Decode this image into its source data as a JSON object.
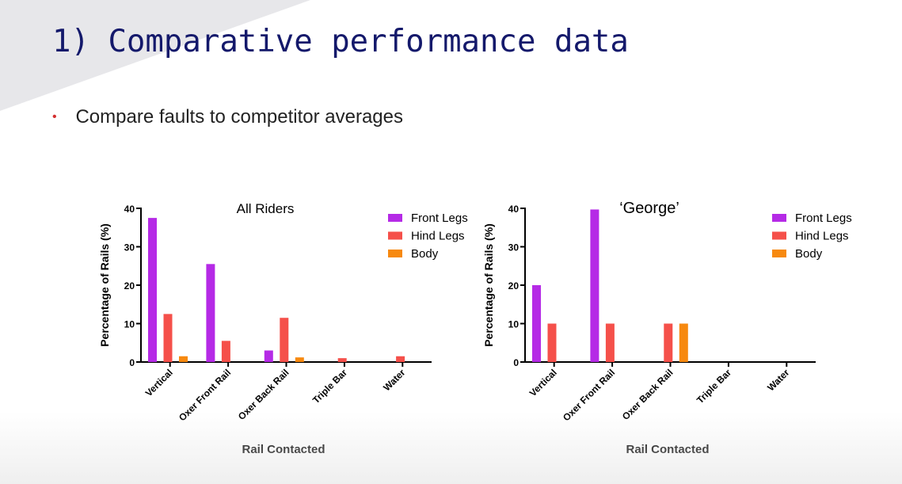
{
  "slide": {
    "title": "1) Comparative performance data",
    "bullet": "Compare faults to competitor averages"
  },
  "colors": {
    "front_legs": "#b52ae6",
    "hind_legs": "#f5504a",
    "body": "#f7890f",
    "title": "#14196b",
    "bullet_dot": "#d32f2f"
  },
  "chart_data": [
    {
      "type": "bar",
      "title": "All Riders",
      "xlabel": "Rail Contacted",
      "ylabel": "Percentage of Rails (%)",
      "ylim": [
        0,
        40
      ],
      "yticks": [
        0,
        10,
        20,
        30,
        40
      ],
      "legend_position": "top-right",
      "categories": [
        "Vertical",
        "Oxer Front Rail",
        "Oxer Back Rail",
        "Triple Bar",
        "Water"
      ],
      "series": [
        {
          "name": "Front Legs",
          "values": [
            37.5,
            25.5,
            3,
            0,
            0
          ]
        },
        {
          "name": "Hind Legs",
          "values": [
            12.5,
            5.5,
            11.5,
            1,
            1.5
          ]
        },
        {
          "name": "Body",
          "values": [
            1.5,
            0,
            1.2,
            0,
            0
          ]
        }
      ]
    },
    {
      "type": "bar",
      "title": "‘George’",
      "xlabel": "Rail Contacted",
      "ylabel": "Percentage of Rails (%)",
      "ylim": [
        0,
        40
      ],
      "yticks": [
        0,
        10,
        20,
        30,
        40
      ],
      "legend_position": "top-right",
      "categories": [
        "Vertical",
        "Oxer Front Rail",
        "Oxer Back Rail",
        "Triple Bar",
        "Water"
      ],
      "series": [
        {
          "name": "Front Legs",
          "values": [
            20,
            39.7,
            0,
            0,
            0
          ]
        },
        {
          "name": "Hind Legs",
          "values": [
            10,
            10,
            10,
            0,
            0
          ]
        },
        {
          "name": "Body",
          "values": [
            0,
            0,
            10,
            0,
            0
          ]
        }
      ]
    }
  ]
}
